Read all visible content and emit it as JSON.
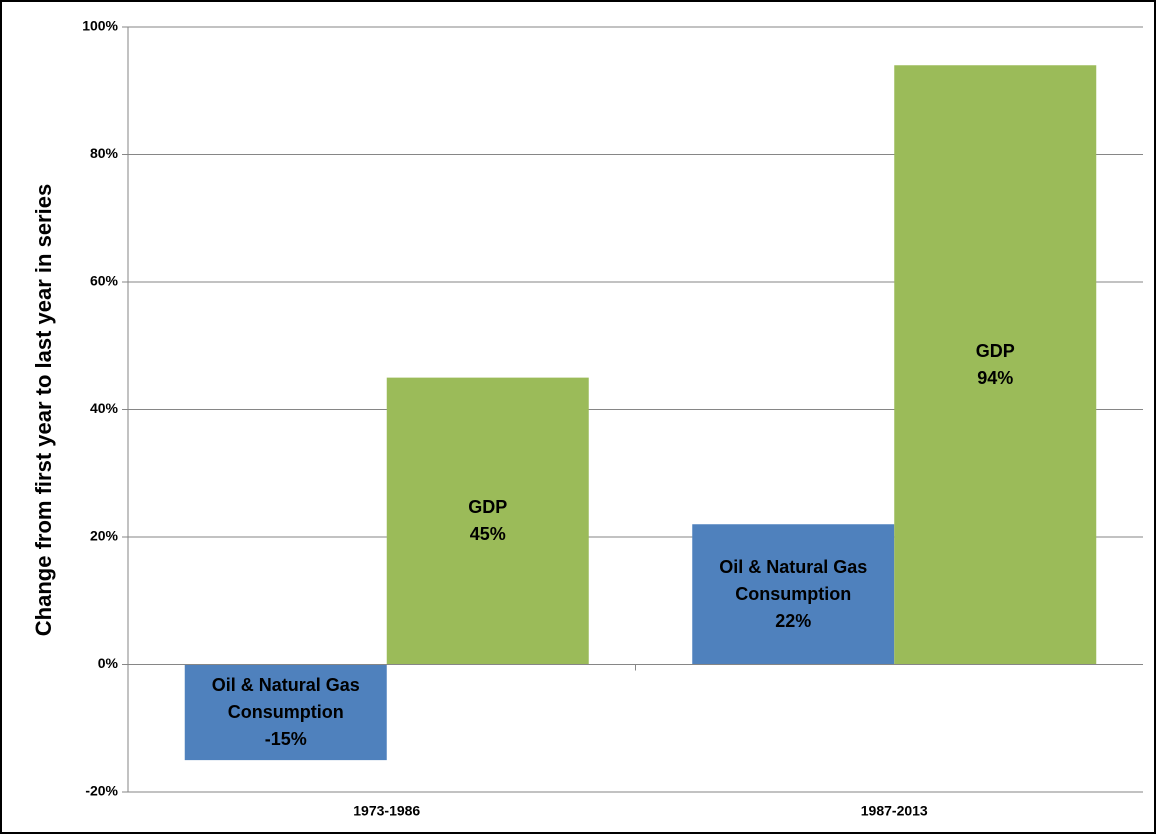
{
  "chart_data": {
    "type": "bar",
    "ylabel": "Change from first year to last year in series",
    "categories": [
      "1973-1986",
      "1987-2013"
    ],
    "series": [
      {
        "name": "Oil & Natural Gas Consumption",
        "color": "#4f81bd",
        "values": [
          -15,
          22
        ],
        "value_labels": [
          "-15%",
          "22%"
        ]
      },
      {
        "name": "GDP",
        "color": "#9bbb59",
        "values": [
          45,
          94
        ],
        "value_labels": [
          "45%",
          "94%"
        ]
      }
    ],
    "ylim": [
      -20,
      100
    ],
    "yticks": [
      {
        "value": -20,
        "label": "-20%"
      },
      {
        "value": 0,
        "label": "0%"
      },
      {
        "value": 20,
        "label": "20%"
      },
      {
        "value": 40,
        "label": "40%"
      },
      {
        "value": 60,
        "label": "60%"
      },
      {
        "value": 80,
        "label": "80%"
      },
      {
        "value": 100,
        "label": "100%"
      }
    ],
    "grid": true
  }
}
